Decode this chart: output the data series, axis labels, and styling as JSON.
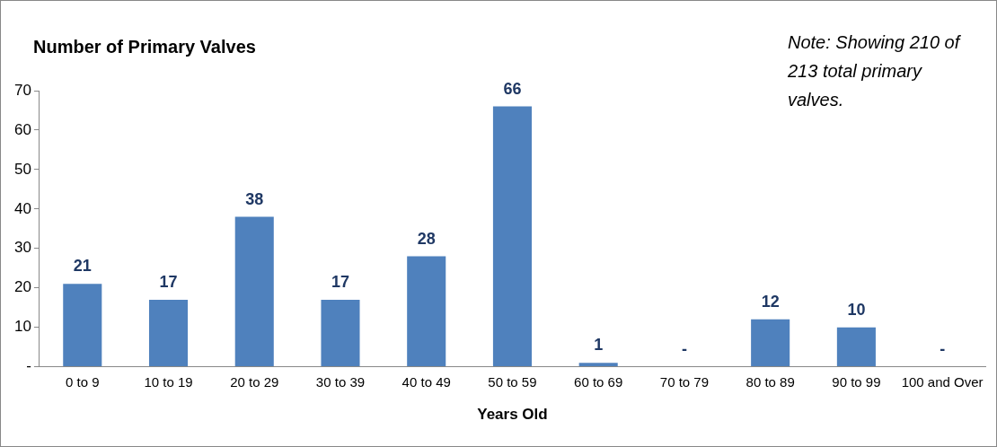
{
  "chart_data": {
    "type": "bar",
    "title": "Number of Primary Valves",
    "xlabel": "Years Old",
    "annotations": [
      "Note: Showing 210 of 213 total primary valves."
    ],
    "categories": [
      "0 to 9",
      "10 to 19",
      "20 to 29",
      "30 to 39",
      "40 to 49",
      "50 to 59",
      "60 to 69",
      "70 to 79",
      "80 to 89",
      "90 to 99",
      "100 and Over"
    ],
    "values": [
      21,
      17,
      38,
      17,
      28,
      66,
      1,
      0,
      12,
      10,
      0
    ],
    "value_labels": [
      "21",
      "17",
      "38",
      "17",
      "28",
      "66",
      "1",
      "-",
      "12",
      "10",
      "-"
    ],
    "color": "#4f81bd",
    "ylim": [
      0,
      70
    ],
    "yticks": [
      {
        "value": 0,
        "label": "-"
      },
      10,
      20,
      30,
      40,
      50,
      60,
      70
    ],
    "grid": false,
    "legend": false
  }
}
